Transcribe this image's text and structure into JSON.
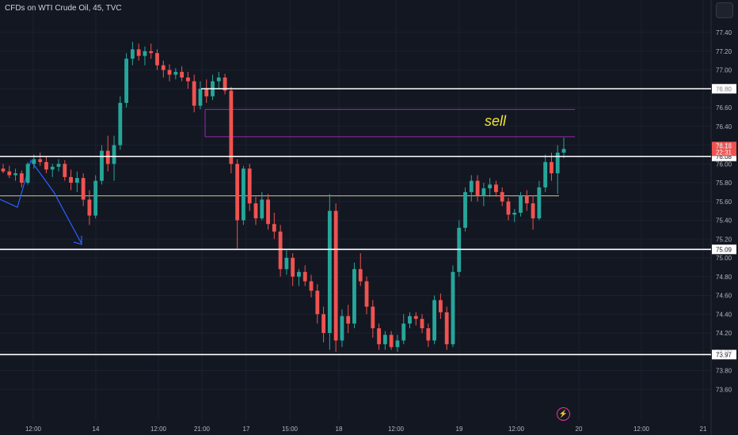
{
  "header": {
    "title": "CFDs on WTI Crude Oil, 45, TVC"
  },
  "colors": {
    "bg": "#131722",
    "grid": "#1c2030",
    "axis_text": "#b2b5be",
    "up": "#26a69a",
    "down": "#ef5350",
    "level_line": "#ffffff",
    "zone_line": "#9c27b0",
    "mid_line": "#c8c88a",
    "arrow": "#2962ff",
    "price_label_bg": "#ffffff",
    "price_label_text": "#131722",
    "current_bg": "#ef5350",
    "current_text": "#ffffff",
    "sell_text": "#f5e633"
  },
  "annotations": {
    "sell": "sell"
  },
  "icons": {
    "menu": "menu-icon",
    "replay": "lightning-icon"
  },
  "chart_data": {
    "type": "candlestick",
    "title": "CFDs on WTI Crude Oil, 45, TVC",
    "ylim": [
      73.5,
      77.6
    ],
    "y_ticks": [
      "77.40",
      "77.20",
      "77.00",
      "76.80",
      "76.60",
      "76.40",
      "76.20",
      "76.00",
      "75.80",
      "75.60",
      "75.40",
      "75.20",
      "75.00",
      "74.80",
      "74.60",
      "74.40",
      "74.20",
      "74.00",
      "73.80",
      "73.60"
    ],
    "x_ticks": [
      "12:00",
      "14",
      "12:00",
      "21:00",
      "17",
      "15:00",
      "18",
      "12:00",
      "19",
      "12:00",
      "20",
      "12:00",
      "21"
    ],
    "current_price": "76.16",
    "countdown": "22:31",
    "horizontal_levels": [
      {
        "value": 76.8,
        "label": "76.80"
      },
      {
        "value": 76.08,
        "label": "76.08"
      },
      {
        "value": 75.09,
        "label": "75.09"
      },
      {
        "value": 73.97,
        "label": "73.97"
      }
    ],
    "sell_zone": {
      "high": 76.58,
      "low": 76.29,
      "label": "sell"
    },
    "mid_level": 75.66,
    "candles": [
      [
        75.95,
        76.0,
        75.9,
        75.92
      ],
      [
        75.92,
        75.98,
        75.85,
        75.88
      ],
      [
        75.88,
        75.95,
        75.82,
        75.9
      ],
      [
        75.9,
        75.93,
        75.75,
        75.8
      ],
      [
        75.8,
        76.02,
        75.78,
        76.0
      ],
      [
        76.0,
        76.1,
        75.95,
        76.05
      ],
      [
        76.05,
        76.12,
        75.98,
        76.02
      ],
      [
        76.02,
        76.08,
        75.9,
        75.94
      ],
      [
        75.94,
        76.0,
        75.86,
        75.97
      ],
      [
        75.97,
        76.05,
        75.92,
        76.0
      ],
      [
        76.0,
        76.04,
        75.82,
        75.86
      ],
      [
        75.86,
        75.94,
        75.72,
        75.8
      ],
      [
        75.8,
        75.92,
        75.7,
        75.85
      ],
      [
        75.85,
        75.9,
        75.55,
        75.62
      ],
      [
        75.62,
        75.72,
        75.35,
        75.45
      ],
      [
        75.45,
        75.88,
        75.42,
        75.82
      ],
      [
        75.82,
        76.2,
        75.78,
        76.14
      ],
      [
        76.14,
        76.3,
        75.92,
        76.0
      ],
      [
        76.0,
        76.3,
        75.82,
        76.2
      ],
      [
        76.2,
        76.72,
        76.15,
        76.65
      ],
      [
        76.65,
        77.18,
        76.6,
        77.12
      ],
      [
        77.12,
        77.3,
        77.05,
        77.22
      ],
      [
        77.22,
        77.28,
        77.1,
        77.15
      ],
      [
        77.15,
        77.25,
        77.05,
        77.2
      ],
      [
        77.2,
        77.28,
        77.12,
        77.18
      ],
      [
        77.18,
        77.22,
        77.0,
        77.05
      ],
      [
        77.05,
        77.1,
        76.92,
        77.0
      ],
      [
        77.0,
        77.06,
        76.88,
        76.95
      ],
      [
        76.95,
        77.02,
        76.9,
        76.98
      ],
      [
        76.98,
        77.04,
        76.88,
        76.92
      ],
      [
        76.92,
        76.98,
        76.8,
        76.88
      ],
      [
        76.88,
        76.95,
        76.55,
        76.62
      ],
      [
        76.62,
        76.88,
        76.58,
        76.8
      ],
      [
        76.8,
        76.9,
        76.65,
        76.72
      ],
      [
        76.72,
        76.95,
        76.68,
        76.88
      ],
      [
        76.88,
        76.98,
        76.8,
        76.92
      ],
      [
        76.92,
        76.96,
        76.74,
        76.78
      ],
      [
        76.78,
        76.82,
        75.9,
        76.0
      ],
      [
        76.0,
        76.05,
        75.1,
        75.4
      ],
      [
        75.4,
        75.98,
        75.35,
        75.95
      ],
      [
        75.95,
        76.0,
        75.5,
        75.58
      ],
      [
        75.58,
        75.65,
        75.35,
        75.42
      ],
      [
        75.42,
        75.7,
        75.4,
        75.62
      ],
      [
        75.62,
        75.68,
        75.3,
        75.36
      ],
      [
        75.36,
        75.48,
        75.2,
        75.28
      ],
      [
        75.28,
        75.35,
        74.8,
        74.88
      ],
      [
        74.88,
        75.08,
        74.82,
        75.0
      ],
      [
        75.0,
        75.05,
        74.7,
        74.8
      ],
      [
        74.8,
        74.88,
        74.7,
        74.85
      ],
      [
        74.85,
        74.92,
        74.7,
        74.75
      ],
      [
        74.75,
        74.82,
        74.58,
        74.65
      ],
      [
        74.65,
        74.72,
        74.3,
        74.4
      ],
      [
        74.4,
        74.48,
        74.1,
        74.2
      ],
      [
        74.2,
        75.68,
        74.02,
        75.5
      ],
      [
        75.5,
        75.58,
        74.0,
        74.12
      ],
      [
        74.12,
        74.45,
        74.05,
        74.38
      ],
      [
        74.38,
        74.5,
        74.2,
        74.3
      ],
      [
        74.3,
        74.95,
        74.25,
        74.88
      ],
      [
        74.88,
        75.05,
        74.7,
        74.75
      ],
      [
        74.75,
        74.8,
        74.4,
        74.48
      ],
      [
        74.48,
        74.55,
        74.15,
        74.25
      ],
      [
        74.25,
        74.3,
        74.02,
        74.08
      ],
      [
        74.08,
        74.22,
        74.02,
        74.18
      ],
      [
        74.18,
        74.22,
        74.02,
        74.05
      ],
      [
        74.05,
        74.18,
        74.0,
        74.12
      ],
      [
        74.12,
        74.4,
        74.08,
        74.3
      ],
      [
        74.3,
        74.42,
        74.25,
        74.38
      ],
      [
        74.38,
        74.42,
        74.28,
        74.35
      ],
      [
        74.35,
        74.4,
        74.2,
        74.25
      ],
      [
        74.25,
        74.3,
        74.05,
        74.12
      ],
      [
        74.12,
        74.6,
        74.08,
        74.55
      ],
      [
        74.55,
        74.62,
        74.35,
        74.42
      ],
      [
        74.42,
        74.48,
        74.02,
        74.08
      ],
      [
        74.08,
        74.92,
        74.05,
        74.85
      ],
      [
        74.85,
        75.4,
        74.8,
        75.32
      ],
      [
        75.32,
        75.75,
        75.28,
        75.7
      ],
      [
        75.7,
        75.88,
        75.6,
        75.82
      ],
      [
        75.82,
        75.88,
        75.6,
        75.66
      ],
      [
        75.66,
        75.8,
        75.55,
        75.74
      ],
      [
        75.74,
        75.85,
        75.65,
        75.78
      ],
      [
        75.78,
        75.82,
        75.65,
        75.7
      ],
      [
        75.7,
        75.75,
        75.55,
        75.6
      ],
      [
        75.6,
        75.64,
        75.4,
        75.46
      ],
      [
        75.46,
        75.52,
        75.38,
        75.48
      ],
      [
        75.48,
        75.7,
        75.44,
        75.66
      ],
      [
        75.66,
        75.72,
        75.5,
        75.58
      ],
      [
        75.58,
        75.66,
        75.3,
        75.42
      ],
      [
        75.42,
        75.82,
        75.4,
        75.75
      ],
      [
        75.75,
        76.1,
        75.7,
        76.02
      ],
      [
        76.02,
        76.12,
        75.82,
        75.9
      ],
      [
        75.9,
        76.2,
        75.68,
        76.12
      ],
      [
        76.12,
        76.28,
        76.06,
        76.16
      ]
    ]
  }
}
